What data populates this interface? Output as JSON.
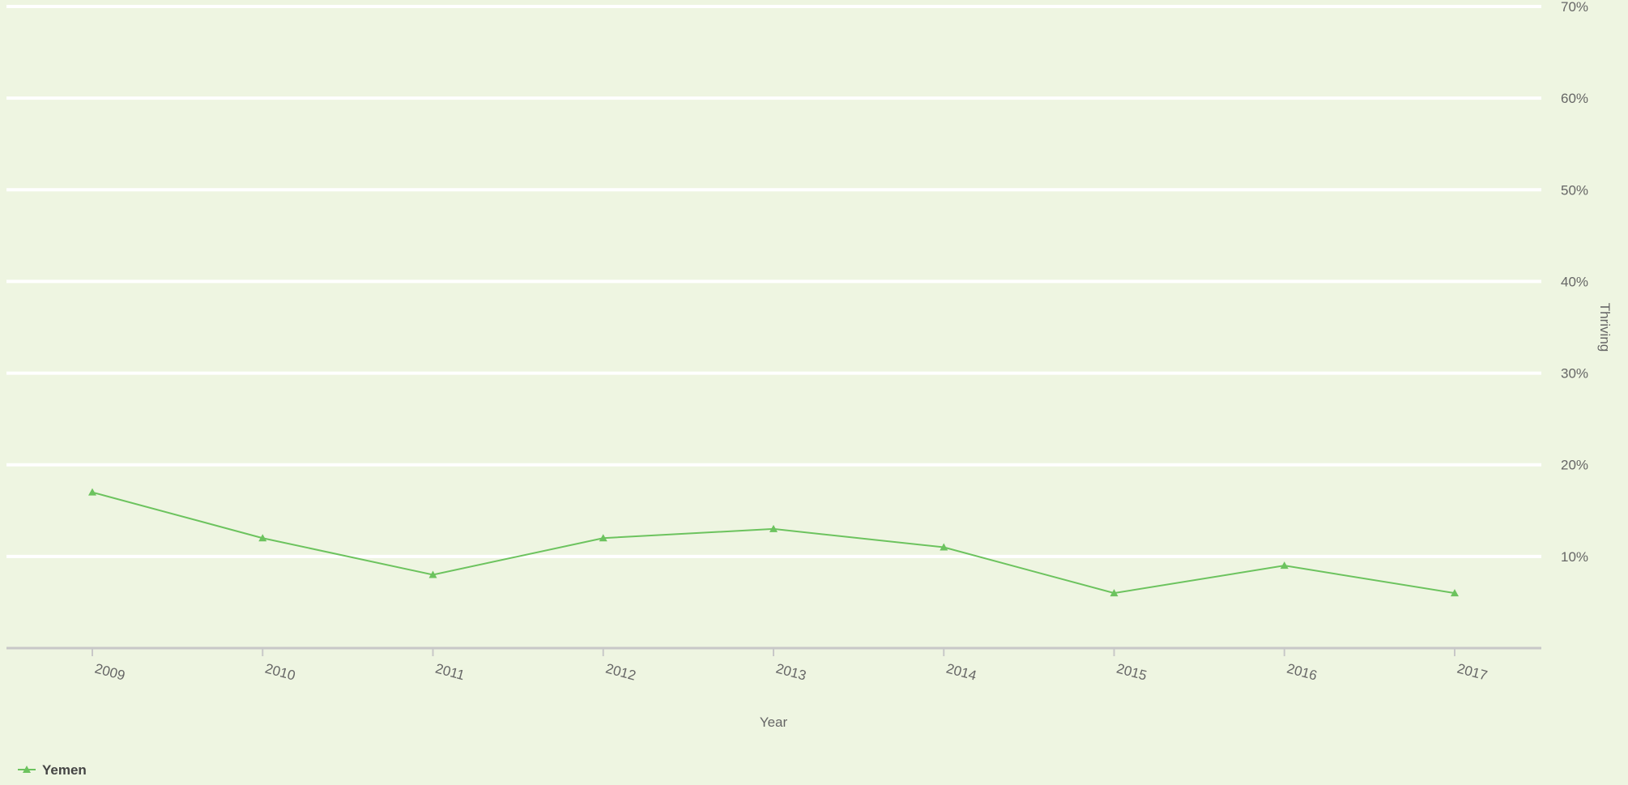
{
  "chart_data": {
    "type": "line",
    "title": "",
    "xlabel": "Year",
    "ylabel": "Thriving",
    "x": [
      "2009",
      "2010",
      "2011",
      "2012",
      "2013",
      "2014",
      "2015",
      "2016",
      "2017"
    ],
    "y_ticks": [
      "10%",
      "20%",
      "30%",
      "40%",
      "50%",
      "60%",
      "70%"
    ],
    "ylim": [
      0,
      70
    ],
    "y_unit": "%",
    "grid": true,
    "legend_position": "bottom-left",
    "series": [
      {
        "name": "Yemen",
        "color": "#6cc35e",
        "marker": "triangle",
        "values": [
          17,
          12,
          8,
          12,
          13,
          11,
          6,
          9,
          6
        ]
      }
    ]
  },
  "colors": {
    "background": "#eef5e1",
    "gridline": "#ffffff",
    "axis": "#c8c8c8",
    "label_text": "#666666"
  }
}
